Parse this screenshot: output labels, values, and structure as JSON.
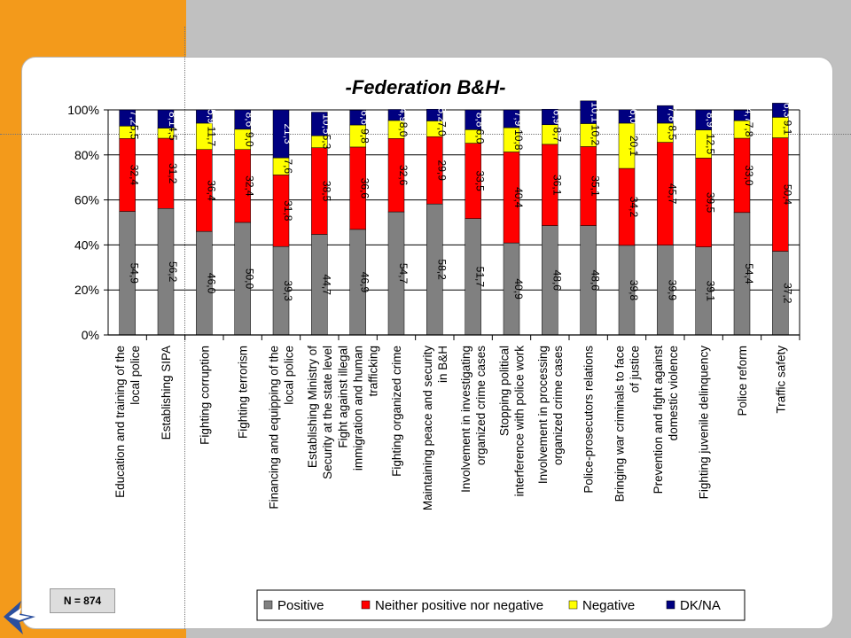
{
  "slide": {
    "title": "-Federation B&H-",
    "sample_note": "N = 874"
  },
  "chart_data": {
    "type": "bar",
    "stacked": true,
    "percent": true,
    "title": "-Federation B&H-",
    "yticks": [
      "0%",
      "20%",
      "40%",
      "60%",
      "80%",
      "100%"
    ],
    "ylim": [
      0,
      100
    ],
    "legend_position": "bottom",
    "categories": [
      "Education and training of the local police",
      "Establishing SIPA",
      "Fighting corruption",
      "Fighting terrorism",
      "Financing and equipping of the local police",
      "Establishing Ministry of Security at the state level",
      "Fight against illegal immigration and human trafficking",
      "Fighting organized crime",
      "Maintaining peace and security in B&H",
      "Involvement in investigating organized crime cases",
      "Stopping political interference with police work",
      "Involvement in processing organized crime cases",
      "Police-prosecutors relations",
      "Bringing war criminals to face of justice",
      "Prevention and fight against domestic violence",
      "Fighting juvenile delinquency",
      "Police reform",
      "Traffic safety"
    ],
    "series": [
      {
        "name": "Positive",
        "color": "#808080",
        "values": [
          54.9,
          56.2,
          46.0,
          50.0,
          39.3,
          44.7,
          46.9,
          54.7,
          58.2,
          51.7,
          40.9,
          48.6,
          48.6,
          39.8,
          39.9,
          39.1,
          54.4,
          37.2
        ],
        "labels": [
          "54,9",
          "56,2",
          "46,0",
          "50,0",
          "39,3",
          "44,7",
          "46,9",
          "54,7",
          "58,2",
          "51,7",
          "40,9",
          "48,6",
          "48,6",
          "39,8",
          "39,9",
          "39,1",
          "54,4",
          "37,2"
        ]
      },
      {
        "name": "Neither positive nor negative",
        "color": "#ff0000",
        "values": [
          32.4,
          31.2,
          36.4,
          32.4,
          31.8,
          38.5,
          36.6,
          32.6,
          29.9,
          33.5,
          40.4,
          36.1,
          35.1,
          34.2,
          45.7,
          39.5,
          33.0,
          50.4
        ],
        "labels": [
          "32,4",
          "31,2",
          "36,4",
          "32,4",
          "31,8",
          "38,5",
          "36,6",
          "32,6",
          "29,9",
          "33,5",
          "40,4",
          "36,1",
          "35,1",
          "34,2",
          "45,7",
          "39,5",
          "33,0",
          "50,4"
        ]
      },
      {
        "name": "Negative",
        "color": "#ffff00",
        "values": [
          5.5,
          4.5,
          11.7,
          9.0,
          7.6,
          5.3,
          9.8,
          8.0,
          7.0,
          6.0,
          10.8,
          8.7,
          10.2,
          20.1,
          8.5,
          12.5,
          7.8,
          9.1
        ],
        "labels": [
          "5,5",
          "4,5",
          "11,7",
          "9,0",
          "7,6",
          "5,3",
          "9,8",
          "8,0",
          "7,0",
          "6,0",
          "10,8",
          "8,7",
          "10,2",
          "20,1",
          "8,5",
          "12,5",
          "7,8",
          "9,1"
        ]
      },
      {
        "name": "DK/NA",
        "color": "#000080",
        "values": [
          7.2,
          8.1,
          5.9,
          8.6,
          21.3,
          10.5,
          6.6,
          4.9,
          5.2,
          8.8,
          7.9,
          6.9,
          10.1,
          6.0,
          7.8,
          8.9,
          4.7,
          6.3
        ],
        "labels": [
          "7,2",
          "8,1",
          "5,9",
          "8,6",
          "21,3",
          "10,5",
          "6,6",
          "4,9",
          "5,2",
          "8,8",
          "7,9",
          "6,9",
          "10,1",
          "6,0",
          "7,8",
          "8,9",
          "4,7",
          "6,3"
        ]
      }
    ]
  }
}
